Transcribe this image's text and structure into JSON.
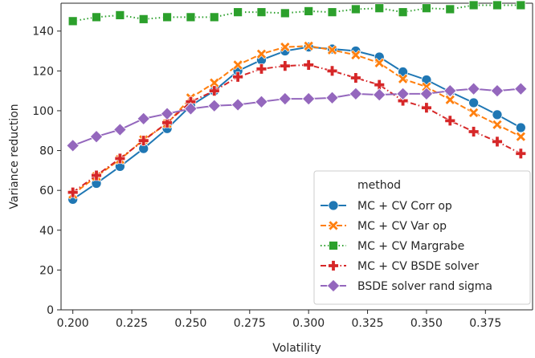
{
  "chart_data": {
    "type": "line",
    "xlabel": "Volatility",
    "ylabel": "Variance reduction",
    "xlim": [
      0.195,
      0.395
    ],
    "ylim": [
      0,
      154
    ],
    "x_ticks": [
      0.2,
      0.225,
      0.25,
      0.275,
      0.3,
      0.325,
      0.35,
      0.375
    ],
    "x_tick_labels": [
      "0.200",
      "0.225",
      "0.250",
      "0.275",
      "0.300",
      "0.325",
      "0.350",
      "0.375"
    ],
    "y_ticks": [
      0,
      20,
      40,
      60,
      80,
      100,
      120,
      140
    ],
    "y_tick_labels": [
      "0",
      "20",
      "40",
      "60",
      "80",
      "100",
      "120",
      "140"
    ],
    "grid": false,
    "legend": {
      "title": "method",
      "placement": "lower-right"
    },
    "x": [
      0.2,
      0.21,
      0.22,
      0.23,
      0.24,
      0.25,
      0.26,
      0.27,
      0.28,
      0.29,
      0.3,
      0.31,
      0.32,
      0.33,
      0.34,
      0.35,
      0.36,
      0.37,
      0.38,
      0.39
    ],
    "series": [
      {
        "name": "MC + CV Corr op",
        "color": "#1f77b4",
        "dash": "solid",
        "marker": "circle",
        "values": [
          55.5,
          63.5,
          72.0,
          81.0,
          91.0,
          102.5,
          110.0,
          120.0,
          125.5,
          130.0,
          132.0,
          131.0,
          130.0,
          127.0,
          119.5,
          115.5,
          109.5,
          104.0,
          98.0,
          91.5
        ]
      },
      {
        "name": "MC + CV Var op",
        "color": "#ff7f0e",
        "dash": "dashed",
        "marker": "x",
        "values": [
          58.0,
          67.0,
          75.5,
          85.5,
          93.5,
          106.5,
          114.0,
          123.0,
          128.5,
          132.0,
          132.5,
          130.5,
          128.0,
          124.0,
          116.0,
          112.0,
          105.5,
          99.0,
          93.0,
          87.0
        ]
      },
      {
        "name": "MC + CV Margrabe",
        "color": "#2ca02c",
        "dash": "dotted",
        "marker": "square",
        "values": [
          145.0,
          147.0,
          148.0,
          146.0,
          147.0,
          147.0,
          147.0,
          149.5,
          149.5,
          149.0,
          150.0,
          149.5,
          151.0,
          151.5,
          149.5,
          151.5,
          151.0,
          153.0,
          153.0,
          153.0
        ]
      },
      {
        "name": "MC + CV BSDE solver",
        "color": "#d62728",
        "dash": "dashdot",
        "marker": "plus",
        "values": [
          59.0,
          67.5,
          76.0,
          85.0,
          94.0,
          104.5,
          110.0,
          117.0,
          121.0,
          122.5,
          123.0,
          120.0,
          116.5,
          113.0,
          105.0,
          101.5,
          95.0,
          89.5,
          84.5,
          78.5
        ]
      },
      {
        "name": "BSDE solver rand sigma",
        "color": "#9467bd",
        "dash": "solid",
        "marker": "diamond",
        "values": [
          82.5,
          87.0,
          90.5,
          96.0,
          98.5,
          101.0,
          102.5,
          103.0,
          104.5,
          106.0,
          106.0,
          106.5,
          108.5,
          108.0,
          108.5,
          108.5,
          110.0,
          111.0,
          110.0,
          111.0
        ]
      }
    ]
  }
}
